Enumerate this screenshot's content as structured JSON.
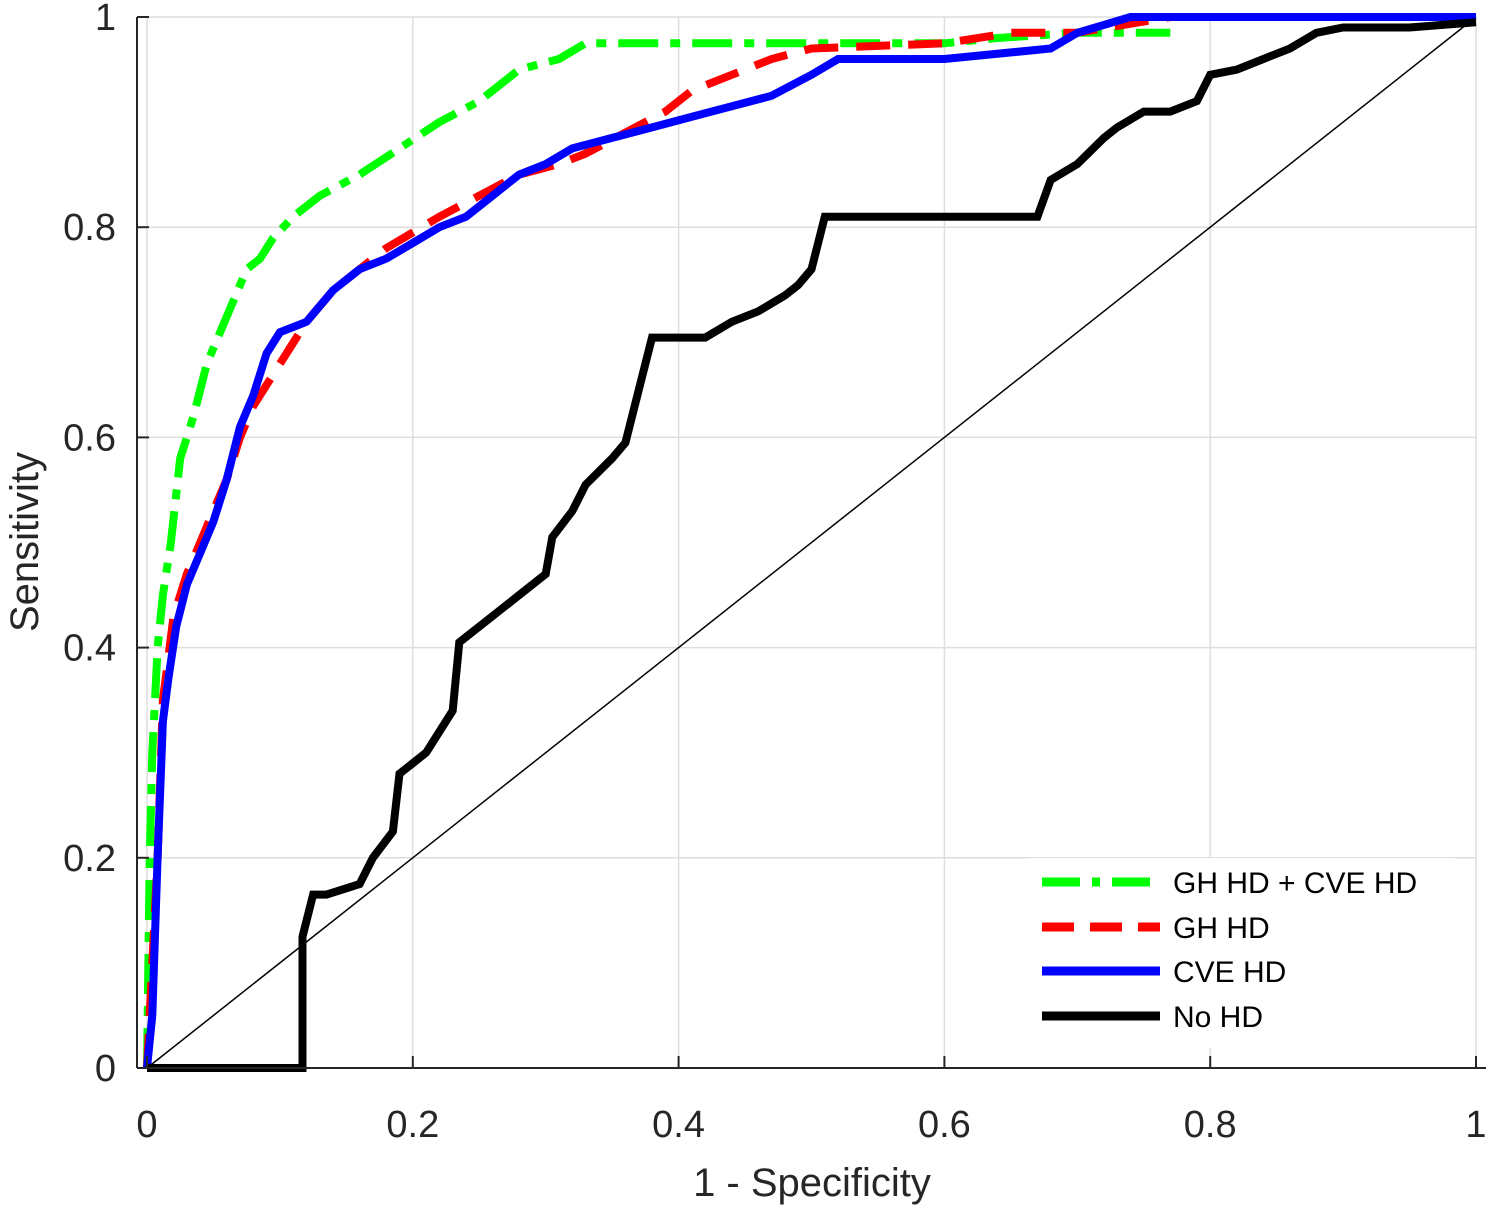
{
  "chart_data": {
    "type": "line",
    "title": "",
    "xlabel": "1 - Specificity",
    "ylabel": "Sensitivity",
    "xlim": [
      0,
      1
    ],
    "ylim": [
      0,
      1
    ],
    "grid": true,
    "legend_position": "bottom-right",
    "xticks": [
      {
        "value": 0,
        "label": "0"
      },
      {
        "value": 0.2,
        "label": "0.2"
      },
      {
        "value": 0.4,
        "label": "0.4"
      },
      {
        "value": 0.6,
        "label": "0.6"
      },
      {
        "value": 0.8,
        "label": "0.8"
      },
      {
        "value": 1,
        "label": "1"
      }
    ],
    "yticks": [
      {
        "value": 0,
        "label": "0"
      },
      {
        "value": 0.2,
        "label": "0.2"
      },
      {
        "value": 0.4,
        "label": "0.4"
      },
      {
        "value": 0.6,
        "label": "0.6"
      },
      {
        "value": 0.8,
        "label": "0.8"
      },
      {
        "value": 1,
        "label": "1"
      }
    ],
    "reference_line": {
      "name": "chance",
      "x": [
        0,
        1
      ],
      "y": [
        0,
        1
      ],
      "color": "#000000"
    },
    "series": [
      {
        "name": "GH HD + CVE HD",
        "color": "#00ff00",
        "dash": "dashdot",
        "x": [
          0,
          0.002,
          0.004,
          0.006,
          0.008,
          0.012,
          0.018,
          0.025,
          0.035,
          0.045,
          0.055,
          0.065,
          0.075,
          0.085,
          0.095,
          0.11,
          0.13,
          0.16,
          0.19,
          0.22,
          0.25,
          0.28,
          0.31,
          0.33,
          0.4,
          0.5,
          0.6,
          0.64,
          0.7,
          0.77
        ],
        "y": [
          0,
          0.2,
          0.3,
          0.35,
          0.4,
          0.45,
          0.5,
          0.58,
          0.62,
          0.67,
          0.7,
          0.73,
          0.76,
          0.77,
          0.79,
          0.81,
          0.83,
          0.85,
          0.875,
          0.9,
          0.92,
          0.95,
          0.96,
          0.975,
          0.975,
          0.975,
          0.975,
          0.98,
          0.985,
          0.985
        ]
      },
      {
        "name": "GH HD",
        "color": "#ff0000",
        "dash": "dashed",
        "x": [
          0,
          0.004,
          0.008,
          0.012,
          0.02,
          0.03,
          0.04,
          0.05,
          0.06,
          0.07,
          0.08,
          0.09,
          0.1,
          0.11,
          0.12,
          0.14,
          0.16,
          0.18,
          0.2,
          0.22,
          0.25,
          0.28,
          0.31,
          0.33,
          0.36,
          0.39,
          0.41,
          0.44,
          0.47,
          0.5,
          0.6,
          0.65,
          0.7,
          0.77
        ],
        "y": [
          0,
          0.1,
          0.2,
          0.35,
          0.43,
          0.47,
          0.5,
          0.53,
          0.56,
          0.6,
          0.63,
          0.65,
          0.67,
          0.69,
          0.71,
          0.74,
          0.76,
          0.78,
          0.795,
          0.81,
          0.83,
          0.85,
          0.86,
          0.87,
          0.89,
          0.91,
          0.93,
          0.945,
          0.96,
          0.97,
          0.975,
          0.985,
          0.985,
          1.0
        ]
      },
      {
        "name": "CVE HD",
        "color": "#0000ff",
        "dash": "solid",
        "x": [
          0,
          0.004,
          0.008,
          0.012,
          0.016,
          0.022,
          0.03,
          0.04,
          0.05,
          0.06,
          0.07,
          0.08,
          0.09,
          0.1,
          0.12,
          0.14,
          0.16,
          0.18,
          0.2,
          0.22,
          0.24,
          0.26,
          0.28,
          0.3,
          0.32,
          0.35,
          0.38,
          0.41,
          0.44,
          0.47,
          0.5,
          0.52,
          0.6,
          0.68,
          0.7,
          0.74,
          0.8,
          1.0
        ],
        "y": [
          0,
          0.05,
          0.2,
          0.33,
          0.37,
          0.42,
          0.46,
          0.49,
          0.52,
          0.56,
          0.61,
          0.64,
          0.68,
          0.7,
          0.71,
          0.74,
          0.76,
          0.77,
          0.785,
          0.8,
          0.81,
          0.83,
          0.85,
          0.86,
          0.875,
          0.885,
          0.895,
          0.905,
          0.915,
          0.925,
          0.945,
          0.96,
          0.96,
          0.97,
          0.985,
          1.0,
          1.0,
          1.0
        ]
      },
      {
        "name": "No HD",
        "color": "#000000",
        "dash": "solid",
        "x": [
          0,
          0.117,
          0.117,
          0.125,
          0.135,
          0.16,
          0.17,
          0.185,
          0.19,
          0.2,
          0.21,
          0.23,
          0.235,
          0.26,
          0.285,
          0.3,
          0.305,
          0.32,
          0.33,
          0.35,
          0.36,
          0.37,
          0.38,
          0.42,
          0.44,
          0.46,
          0.48,
          0.49,
          0.5,
          0.51,
          0.55,
          0.6,
          0.67,
          0.68,
          0.7,
          0.72,
          0.73,
          0.75,
          0.77,
          0.79,
          0.8,
          0.82,
          0.84,
          0.86,
          0.88,
          0.9,
          0.95,
          1.0
        ],
        "y": [
          0,
          0,
          0.125,
          0.165,
          0.165,
          0.175,
          0.2,
          0.225,
          0.28,
          0.29,
          0.3,
          0.34,
          0.405,
          0.43,
          0.455,
          0.47,
          0.505,
          0.53,
          0.555,
          0.58,
          0.595,
          0.645,
          0.695,
          0.695,
          0.71,
          0.72,
          0.735,
          0.745,
          0.76,
          0.81,
          0.81,
          0.81,
          0.81,
          0.845,
          0.86,
          0.885,
          0.895,
          0.91,
          0.91,
          0.92,
          0.945,
          0.95,
          0.96,
          0.97,
          0.985,
          0.99,
          0.99,
          0.995
        ]
      }
    ]
  }
}
